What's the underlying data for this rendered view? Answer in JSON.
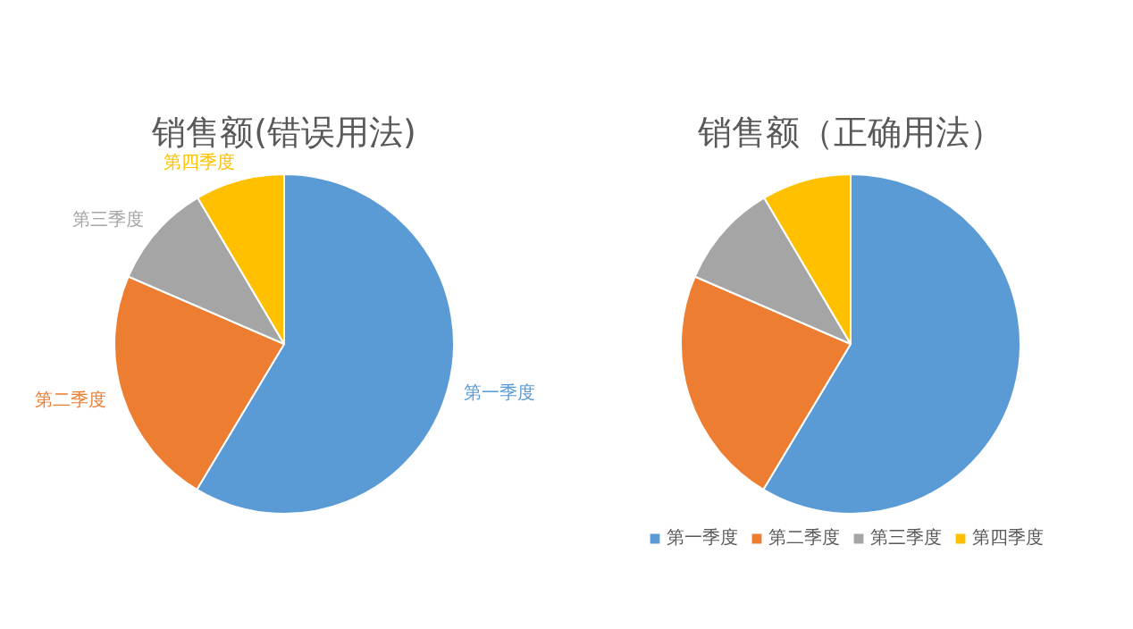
{
  "chart_data": [
    {
      "type": "pie",
      "title": "销售额(错误用法)",
      "categories": [
        "第一季度",
        "第二季度",
        "第三季度",
        "第四季度"
      ],
      "values": [
        58.6,
        22.9,
        10,
        8.5
      ],
      "colors": [
        "#5b9bd5",
        "#ed7d31",
        "#a5a5a5",
        "#ffc000"
      ],
      "legend": false
    },
    {
      "type": "pie",
      "title": "销售额（正确用法）",
      "categories": [
        "第一季度",
        "第二季度",
        "第三季度",
        "第四季度"
      ],
      "values": [
        58.6,
        22.9,
        10,
        8.5
      ],
      "colors": [
        "#5b9bd5",
        "#ed7d31",
        "#a5a5a5",
        "#ffc000"
      ],
      "legend": "bottom"
    }
  ]
}
